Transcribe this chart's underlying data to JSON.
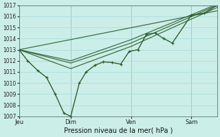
{
  "xlabel": "Pression niveau de la mer( hPa )",
  "bg_color": "#cceee8",
  "grid_color": "#aadddd",
  "line_color": "#2d5e2d",
  "ylim": [
    1007,
    1017
  ],
  "yticks": [
    1007,
    1008,
    1009,
    1010,
    1011,
    1012,
    1013,
    1014,
    1015,
    1016,
    1017
  ],
  "xtick_labels": [
    "Jeu",
    "Dim",
    "Ven",
    "Sam"
  ],
  "xtick_positions": [
    0,
    60,
    130,
    200
  ],
  "vline_positions": [
    0,
    60,
    130,
    200
  ],
  "xlim": [
    0,
    230
  ],
  "main_line": [
    [
      0,
      1013.0
    ],
    [
      10,
      1012.0
    ],
    [
      22,
      1011.1
    ],
    [
      32,
      1010.5
    ],
    [
      42,
      1009.0
    ],
    [
      52,
      1007.3
    ],
    [
      60,
      1007.0
    ],
    [
      70,
      1010.0
    ],
    [
      78,
      1011.0
    ],
    [
      88,
      1011.6
    ],
    [
      98,
      1011.9
    ],
    [
      108,
      1011.85
    ],
    [
      118,
      1011.7
    ],
    [
      128,
      1012.85
    ],
    [
      138,
      1013.0
    ],
    [
      148,
      1014.4
    ],
    [
      158,
      1014.5
    ],
    [
      168,
      1014.0
    ],
    [
      178,
      1013.6
    ],
    [
      200,
      1016.1
    ],
    [
      215,
      1016.3
    ],
    [
      230,
      1017.0
    ]
  ],
  "envelope_lines": [
    [
      [
        0,
        1013.0
      ],
      [
        230,
        1016.5
      ]
    ],
    [
      [
        0,
        1013.0
      ],
      [
        60,
        1011.3
      ],
      [
        130,
        1013.3
      ],
      [
        230,
        1016.8
      ]
    ],
    [
      [
        0,
        1013.0
      ],
      [
        60,
        1011.8
      ],
      [
        130,
        1013.6
      ],
      [
        230,
        1017.0
      ]
    ],
    [
      [
        0,
        1013.0
      ],
      [
        60,
        1012.0
      ],
      [
        130,
        1013.9
      ],
      [
        230,
        1017.1
      ]
    ]
  ],
  "xlabel_fontsize": 7
}
